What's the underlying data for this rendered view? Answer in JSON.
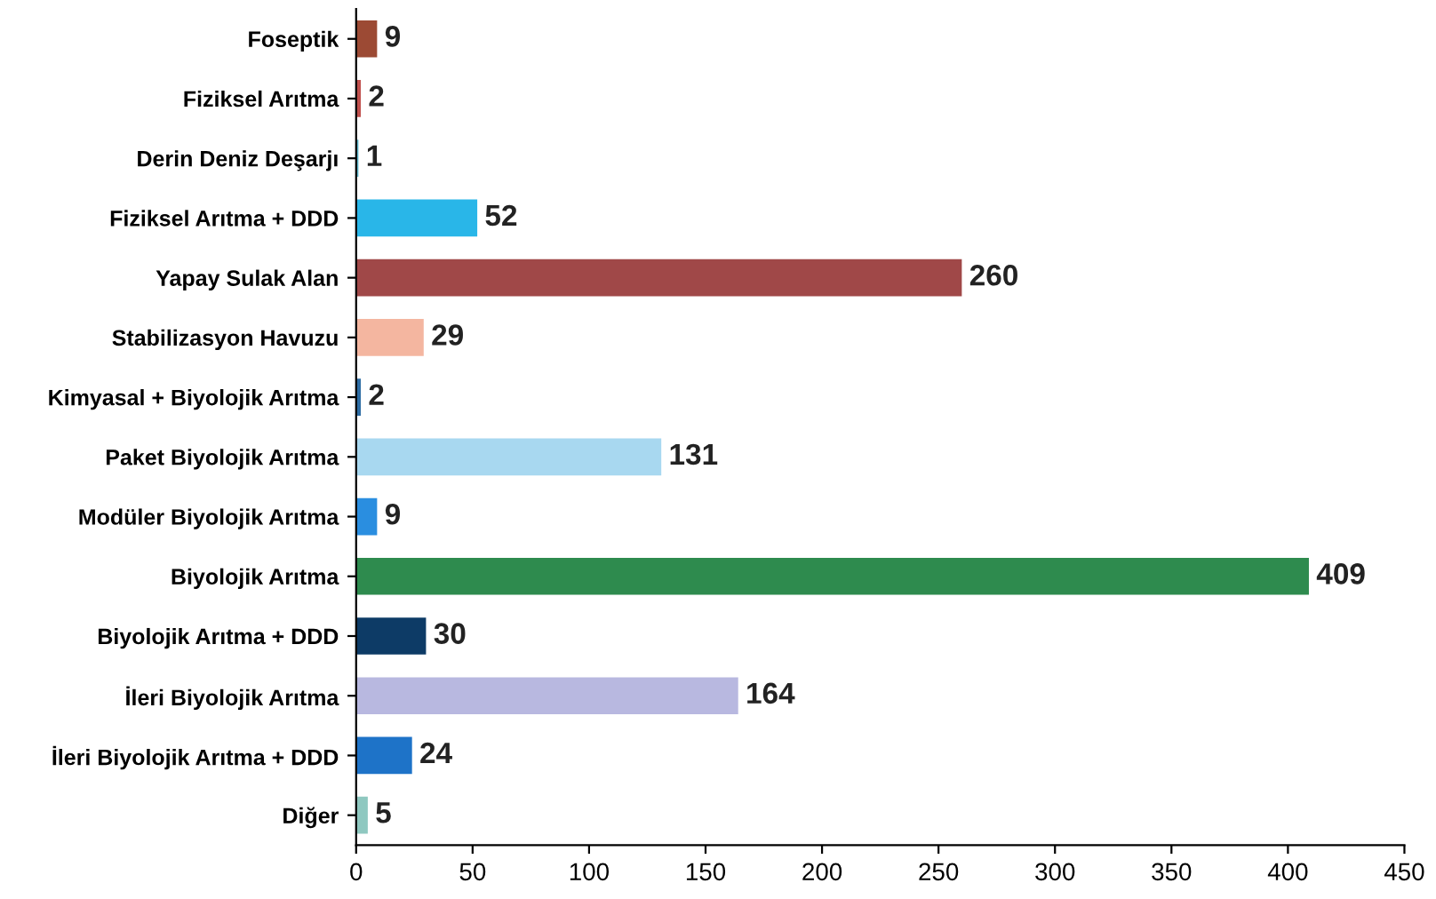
{
  "chart_data": {
    "type": "bar",
    "orientation": "horizontal",
    "data_labels": true,
    "grid": false,
    "categories": [
      "Foseptik",
      "Fiziksel Arıtma",
      "Derin Deniz Deşarjı",
      "Fiziksel Arıtma + DDD",
      "Yapay Sulak Alan",
      "Stabilizasyon Havuzu",
      "Kimyasal + Biyolojik Arıtma",
      "Paket Biyolojik Arıtma",
      "Modüler Biyolojik Arıtma",
      "Biyolojik Arıtma",
      "Biyolojik Arıtma + DDD",
      "İleri Biyolojik Arıtma",
      "İleri Biyolojik Arıtma + DDD",
      "Diğer"
    ],
    "values": [
      9,
      2,
      1,
      52,
      260,
      29,
      2,
      131,
      9,
      409,
      30,
      164,
      24,
      5
    ],
    "colors": [
      "#9c4a34",
      "#c0504d",
      "#5bb5c9",
      "#29b6e8",
      "#a04848",
      "#f4b6a0",
      "#2e6da4",
      "#a8d8f0",
      "#2a8ee0",
      "#2e8b4e",
      "#0d3b66",
      "#b8b8e0",
      "#1e73c8",
      "#8fc8c0"
    ],
    "xlim": [
      0,
      450
    ],
    "xticks": [
      0,
      50,
      100,
      150,
      200,
      250,
      300,
      350,
      400,
      450
    ]
  }
}
